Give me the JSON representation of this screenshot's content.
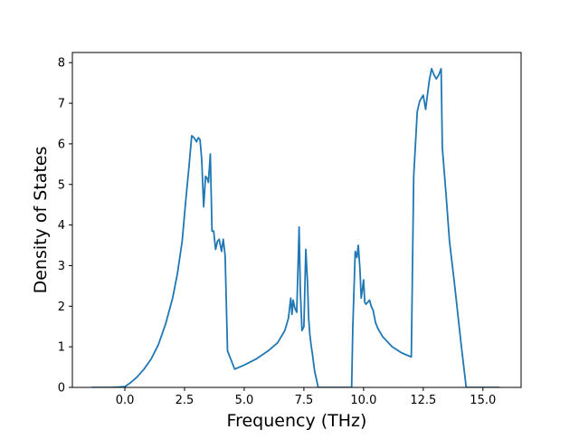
{
  "chart_data": {
    "type": "line",
    "title": "",
    "xlabel": "Frequency (THz)",
    "ylabel": "Density of States",
    "xlim": [
      -2.2,
      16.6
    ],
    "ylim": [
      0,
      8.25
    ],
    "xticks": [
      0.0,
      2.5,
      5.0,
      7.5,
      10.0,
      12.5,
      15.0
    ],
    "xtick_labels": [
      "0.0",
      "2.5",
      "5.0",
      "7.5",
      "10.0",
      "12.5",
      "15.0"
    ],
    "yticks": [
      0,
      1,
      2,
      3,
      4,
      5,
      6,
      7,
      8
    ],
    "ytick_labels": [
      "0",
      "1",
      "2",
      "3",
      "4",
      "5",
      "6",
      "7",
      "8"
    ],
    "grid": false,
    "legend": null,
    "line_color": "#1f77b4",
    "series": [
      {
        "x": [
          -1.4,
          -1.0,
          -0.5,
          0.0,
          0.2,
          0.5,
          0.8,
          1.1,
          1.4,
          1.7,
          2.0,
          2.2,
          2.4,
          2.55,
          2.68,
          2.8,
          2.9,
          3.0,
          3.08,
          3.15,
          3.22,
          3.3,
          3.38,
          3.45,
          3.5,
          3.58,
          3.65,
          3.72,
          3.8,
          3.88,
          3.95,
          4.05,
          4.12,
          4.2,
          4.3,
          4.6,
          5.0,
          5.5,
          6.0,
          6.4,
          6.7,
          6.85,
          6.95,
          7.0,
          7.05,
          7.12,
          7.2,
          7.3,
          7.35,
          7.42,
          7.5,
          7.58,
          7.65,
          7.7,
          7.75,
          7.8,
          7.85,
          7.95,
          8.1,
          8.35,
          9.5,
          9.55,
          9.65,
          9.72,
          9.78,
          9.85,
          9.9,
          9.95,
          10.0,
          10.05,
          10.1,
          10.18,
          10.25,
          10.32,
          10.4,
          10.5,
          10.6,
          10.8,
          11.2,
          11.6,
          12.0,
          12.1,
          12.25,
          12.35,
          12.5,
          12.6,
          12.75,
          12.85,
          12.95,
          13.05,
          13.15,
          13.25,
          13.3,
          13.45,
          13.6,
          13.8,
          14.1,
          14.3,
          14.7,
          15.2,
          15.7
        ],
        "y": [
          0,
          0,
          0,
          0.02,
          0.1,
          0.25,
          0.45,
          0.7,
          1.05,
          1.55,
          2.2,
          2.8,
          3.6,
          4.6,
          5.4,
          6.2,
          6.15,
          6.05,
          6.15,
          6.1,
          5.6,
          4.45,
          5.2,
          5.15,
          5.05,
          5.75,
          3.85,
          3.85,
          3.4,
          3.6,
          3.65,
          3.35,
          3.65,
          3.25,
          0.9,
          0.45,
          0.55,
          0.7,
          0.9,
          1.1,
          1.4,
          1.7,
          2.2,
          1.8,
          2.15,
          1.95,
          1.85,
          3.95,
          2.4,
          1.4,
          1.5,
          3.4,
          2.6,
          1.7,
          1.3,
          1.05,
          0.85,
          0.4,
          0,
          0,
          0,
          1.5,
          3.35,
          3.2,
          3.5,
          2.9,
          2.2,
          2.4,
          2.65,
          2.1,
          2.05,
          2.1,
          2.15,
          2.0,
          1.9,
          1.6,
          1.45,
          1.25,
          1.0,
          0.85,
          0.75,
          5.2,
          6.8,
          7.05,
          7.2,
          6.85,
          7.55,
          7.85,
          7.7,
          7.6,
          7.7,
          7.85,
          5.9,
          4.8,
          3.6,
          2.6,
          1.0,
          0,
          0,
          0,
          0
        ]
      }
    ]
  }
}
